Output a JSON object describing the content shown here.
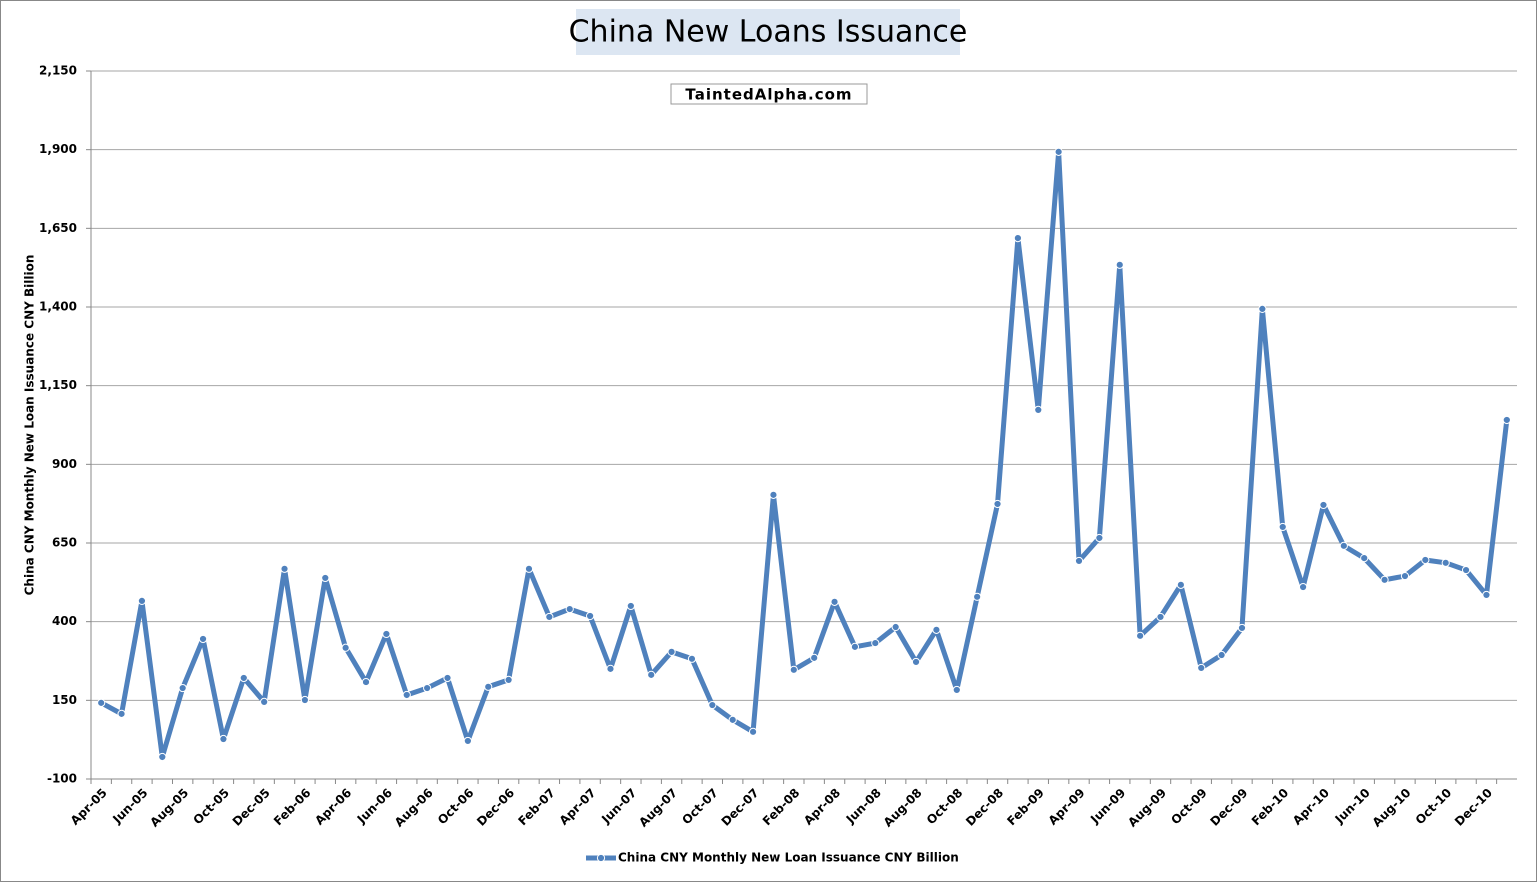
{
  "chart_data": {
    "type": "line",
    "title": "China New Loans Issuance",
    "watermark": "TaintedAlpha.com",
    "y_label": "China CNY Monthly New Loan Issuance CNY Billion",
    "categories": [
      "Apr-05",
      null,
      "Jun-05",
      null,
      "Aug-05",
      null,
      "Oct-05",
      null,
      "Dec-05",
      null,
      "Feb-06",
      null,
      "Apr-06",
      null,
      "Jun-06",
      null,
      "Aug-06",
      null,
      "Oct-06",
      null,
      "Dec-06",
      null,
      "Feb-07",
      null,
      "Apr-07",
      null,
      "Jun-07",
      null,
      "Aug-07",
      null,
      "Oct-07",
      null,
      "Dec-07",
      null,
      "Feb-08",
      null,
      "Apr-08",
      null,
      "Jun-08",
      null,
      "Aug-08",
      null,
      "Oct-08",
      null,
      "Dec-08",
      null,
      "Feb-09",
      null,
      "Apr-09",
      null,
      "Jun-09",
      null,
      "Aug-09",
      null,
      "Oct-09",
      null,
      "Dec-09",
      null,
      "Feb-10",
      null,
      "Apr-10",
      null,
      "Jun-10",
      null,
      "Aug-10",
      null,
      "Oct-10",
      null,
      "Dec-10",
      null
    ],
    "series": [
      {
        "name": "China CNY Monthly New Loan Issuance CNY Billion",
        "color": "#4f81bd",
        "values": [
          142,
          107,
          466,
          -30,
          189,
          345,
          27,
          221,
          145,
          568,
          151,
          539,
          317,
          208,
          361,
          167,
          189,
          221,
          21,
          193,
          215,
          568,
          415,
          440,
          418,
          250,
          450,
          231,
          304,
          282,
          135,
          88,
          50,
          803,
          247,
          285,
          463,
          320,
          332,
          383,
          272,
          374,
          183,
          479,
          774,
          1619,
          1073,
          1893,
          593,
          666,
          1534,
          355,
          415,
          517,
          253,
          294,
          380,
          1394,
          701,
          510,
          771,
          641,
          602,
          533,
          545,
          596,
          587,
          564,
          485,
          1041
        ]
      }
    ],
    "ylim": [
      -100,
      2150
    ],
    "yticks": [
      -100,
      150,
      400,
      650,
      900,
      {
        "value": 1150,
        "label": "1,150"
      },
      {
        "value": 1400,
        "label": "1,400"
      },
      {
        "value": 1650,
        "label": "1,650"
      },
      {
        "value": 1900,
        "label": "1,900"
      },
      {
        "value": 2150,
        "label": "2,150"
      }
    ],
    "grid": true,
    "legend": "bottom"
  }
}
